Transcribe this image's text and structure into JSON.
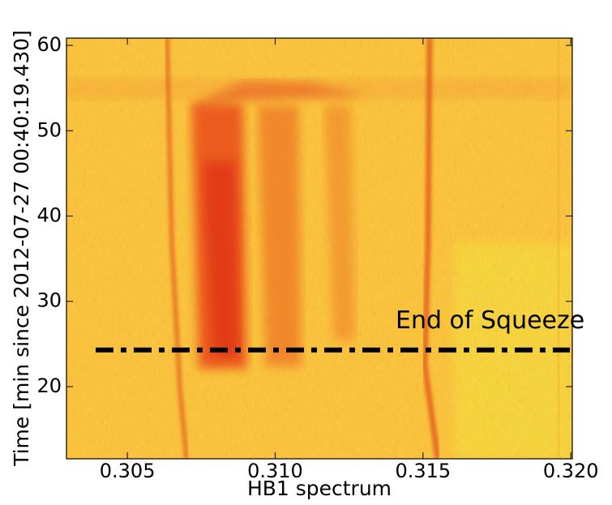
{
  "chart_data": {
    "type": "heatmap",
    "xlabel": "HB1 spectrum",
    "ylabel": "Time [min since 2012-07-27 00:40:19.430]",
    "xlim": [
      0.30294,
      0.32005
    ],
    "ylim": [
      11.54,
      60.86
    ],
    "xticks": [
      0.305,
      {
        "value": 0.31,
        "label": "0.310"
      },
      0.315,
      {
        "value": 0.32,
        "label": "0.320"
      }
    ],
    "yticks": [
      20,
      30,
      40,
      50,
      60
    ],
    "annotations": [
      {
        "text": "End of Squeeze",
        "y": 24.3,
        "color": "#000000"
      }
    ]
  }
}
